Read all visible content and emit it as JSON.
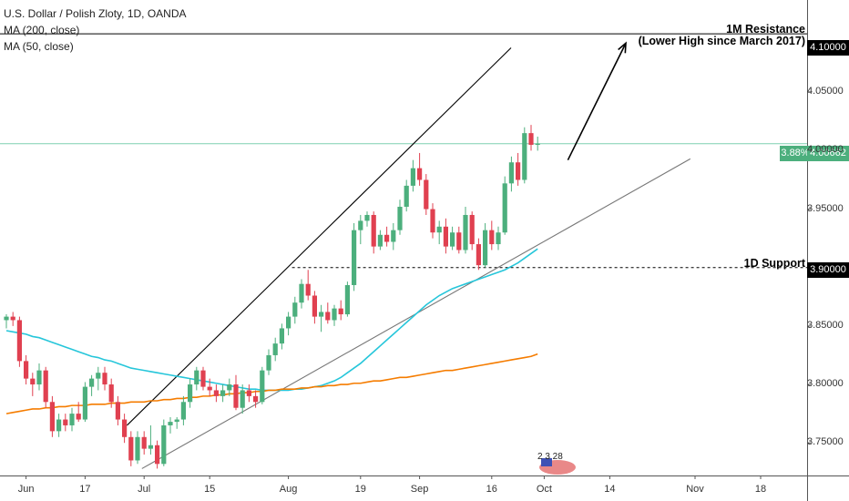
{
  "legend": {
    "symbol": "U.S. Dollar / Polish Zloty, 1D, OANDA",
    "ma200": "MA (200, close)",
    "ma50": "MA (50, close)"
  },
  "annotations": {
    "resistance_line1": "1M Resistance",
    "resistance_line2": "(Lower High since March 2017)",
    "support": "1D Support"
  },
  "price_tags": {
    "resistance": "4.10000",
    "last_price": "4.00662",
    "last_change": "3.88%",
    "support": "3.90000"
  },
  "event_badge": "2 3 28",
  "colors": {
    "up": "#4caf7d",
    "down": "#e04050",
    "ma50": "#26c6da",
    "ma200": "#f57c00",
    "last_line": "#7fd0b0"
  },
  "chart_data": {
    "type": "candlestick",
    "title": "U.S. Dollar / Polish Zloty, 1D, OANDA",
    "ylim": [
      3.72,
      4.13
    ],
    "y_ticks": [
      "4.05000",
      "4.00000",
      "3.95000",
      "3.85000",
      "3.80000",
      "3.75000"
    ],
    "x_ticks": [
      "Jun",
      "17",
      "Jul",
      "15",
      "Aug",
      "19",
      "Sep",
      "16",
      "Oct",
      "14",
      "Nov",
      "18"
    ],
    "horizontal_levels": [
      {
        "label": "1M Resistance",
        "value": 4.1
      },
      {
        "label": "1D Support",
        "value": 3.9
      }
    ],
    "candles": [
      [
        3.855,
        3.86,
        3.848,
        3.858
      ],
      [
        3.858,
        3.862,
        3.85,
        3.855
      ],
      [
        3.855,
        3.858,
        3.815,
        3.82
      ],
      [
        3.82,
        3.825,
        3.8,
        3.805
      ],
      [
        3.805,
        3.81,
        3.79,
        3.8
      ],
      [
        3.8,
        3.818,
        3.795,
        3.812
      ],
      [
        3.812,
        3.815,
        3.78,
        3.785
      ],
      [
        3.785,
        3.79,
        3.755,
        3.76
      ],
      [
        3.76,
        3.775,
        3.755,
        3.77
      ],
      [
        3.77,
        3.775,
        3.76,
        3.765
      ],
      [
        3.765,
        3.78,
        3.76,
        3.775
      ],
      [
        3.775,
        3.785,
        3.768,
        3.77
      ],
      [
        3.77,
        3.802,
        3.768,
        3.798
      ],
      [
        3.798,
        3.808,
        3.79,
        3.805
      ],
      [
        3.805,
        3.815,
        3.795,
        3.81
      ],
      [
        3.81,
        3.815,
        3.795,
        3.8
      ],
      [
        3.8,
        3.805,
        3.78,
        3.785
      ],
      [
        3.785,
        3.79,
        3.765,
        3.77
      ],
      [
        3.77,
        3.775,
        3.75,
        3.755
      ],
      [
        3.755,
        3.76,
        3.73,
        3.735
      ],
      [
        3.735,
        3.76,
        3.732,
        3.755
      ],
      [
        3.755,
        3.76,
        3.74,
        3.745
      ],
      [
        3.745,
        3.765,
        3.74,
        3.748
      ],
      [
        3.748,
        3.752,
        3.728,
        3.732
      ],
      [
        3.732,
        3.77,
        3.73,
        3.765
      ],
      [
        3.765,
        3.772,
        3.758,
        3.768
      ],
      [
        3.768,
        3.772,
        3.762,
        3.77
      ],
      [
        3.77,
        3.79,
        3.765,
        3.785
      ],
      [
        3.785,
        3.805,
        3.78,
        3.8
      ],
      [
        3.8,
        3.815,
        3.795,
        3.812
      ],
      [
        3.812,
        3.815,
        3.795,
        3.798
      ],
      [
        3.798,
        3.805,
        3.79,
        3.795
      ],
      [
        3.795,
        3.8,
        3.785,
        3.79
      ],
      [
        3.79,
        3.8,
        3.785,
        3.795
      ],
      [
        3.795,
        3.805,
        3.79,
        3.8
      ],
      [
        3.8,
        3.808,
        3.778,
        3.78
      ],
      [
        3.78,
        3.8,
        3.775,
        3.795
      ],
      [
        3.795,
        3.8,
        3.785,
        3.79
      ],
      [
        3.79,
        3.795,
        3.78,
        3.785
      ],
      [
        3.785,
        3.815,
        3.783,
        3.812
      ],
      [
        3.812,
        3.83,
        3.808,
        3.825
      ],
      [
        3.825,
        3.84,
        3.82,
        3.835
      ],
      [
        3.835,
        3.852,
        3.83,
        3.848
      ],
      [
        3.848,
        3.862,
        3.842,
        3.858
      ],
      [
        3.858,
        3.875,
        3.852,
        3.87
      ],
      [
        3.87,
        3.89,
        3.865,
        3.886
      ],
      [
        3.886,
        3.898,
        3.872,
        3.876
      ],
      [
        3.876,
        3.88,
        3.852,
        3.858
      ],
      [
        3.858,
        3.868,
        3.845,
        3.862
      ],
      [
        3.862,
        3.87,
        3.852,
        3.855
      ],
      [
        3.855,
        3.868,
        3.85,
        3.865
      ],
      [
        3.865,
        3.872,
        3.855,
        3.86
      ],
      [
        3.86,
        3.888,
        3.858,
        3.885
      ],
      [
        3.885,
        3.938,
        3.88,
        3.932
      ],
      [
        3.932,
        3.945,
        3.92,
        3.94
      ],
      [
        3.94,
        3.948,
        3.935,
        3.945
      ],
      [
        3.945,
        3.948,
        3.912,
        3.918
      ],
      [
        3.918,
        3.932,
        3.915,
        3.928
      ],
      [
        3.928,
        3.935,
        3.918,
        3.922
      ],
      [
        3.922,
        3.938,
        3.915,
        3.932
      ],
      [
        3.932,
        3.958,
        3.928,
        3.952
      ],
      [
        3.952,
        3.975,
        3.948,
        3.97
      ],
      [
        3.97,
        3.992,
        3.965,
        3.985
      ],
      [
        3.985,
        3.998,
        3.97,
        3.975
      ],
      [
        3.975,
        3.98,
        3.945,
        3.95
      ],
      [
        3.95,
        3.955,
        3.925,
        3.93
      ],
      [
        3.93,
        3.94,
        3.92,
        3.935
      ],
      [
        3.935,
        3.942,
        3.912,
        3.918
      ],
      [
        3.918,
        3.935,
        3.915,
        3.93
      ],
      [
        3.93,
        3.935,
        3.912,
        3.915
      ],
      [
        3.915,
        3.952,
        3.912,
        3.945
      ],
      [
        3.945,
        3.948,
        3.915,
        3.92
      ],
      [
        3.92,
        3.925,
        3.898,
        3.902
      ],
      [
        3.902,
        3.938,
        3.9,
        3.932
      ],
      [
        3.932,
        3.94,
        3.915,
        3.92
      ],
      [
        3.92,
        3.935,
        3.915,
        3.93
      ],
      [
        3.93,
        3.978,
        3.928,
        3.972
      ],
      [
        3.972,
        3.995,
        3.965,
        3.99
      ],
      [
        3.99,
        3.998,
        3.97,
        3.975
      ],
      [
        3.975,
        4.02,
        3.972,
        4.015
      ],
      [
        4.015,
        4.022,
        4.0,
        4.005
      ],
      [
        4.005,
        4.012,
        4.0,
        4.006
      ]
    ],
    "series": [
      {
        "name": "MA (50, close)",
        "color": "#26c6da",
        "values": [
          3.846,
          3.845,
          3.844,
          3.843,
          3.841,
          3.84,
          3.838,
          3.836,
          3.834,
          3.832,
          3.83,
          3.828,
          3.826,
          3.824,
          3.823,
          3.821,
          3.82,
          3.818,
          3.816,
          3.814,
          3.813,
          3.812,
          3.811,
          3.81,
          3.809,
          3.808,
          3.807,
          3.806,
          3.805,
          3.804,
          3.803,
          3.802,
          3.801,
          3.8,
          3.799,
          3.798,
          3.797,
          3.796,
          3.796,
          3.795,
          3.795,
          3.795,
          3.795,
          3.795,
          3.796,
          3.796,
          3.797,
          3.798,
          3.799,
          3.801,
          3.803,
          3.806,
          3.81,
          3.814,
          3.818,
          3.823,
          3.828,
          3.833,
          3.838,
          3.843,
          3.848,
          3.853,
          3.858,
          3.863,
          3.868,
          3.872,
          3.876,
          3.879,
          3.882,
          3.884,
          3.886,
          3.888,
          3.89,
          3.892,
          3.894,
          3.896,
          3.898,
          3.901,
          3.904,
          3.908,
          3.912,
          3.916
        ]
      },
      {
        "name": "MA (200, close)",
        "color": "#f57c00",
        "values": [
          3.775,
          3.776,
          3.777,
          3.778,
          3.779,
          3.779,
          3.78,
          3.78,
          3.781,
          3.781,
          3.782,
          3.782,
          3.782,
          3.783,
          3.783,
          3.783,
          3.784,
          3.784,
          3.784,
          3.785,
          3.785,
          3.785,
          3.786,
          3.786,
          3.787,
          3.787,
          3.788,
          3.788,
          3.789,
          3.789,
          3.79,
          3.79,
          3.791,
          3.791,
          3.792,
          3.792,
          3.793,
          3.793,
          3.794,
          3.794,
          3.795,
          3.795,
          3.796,
          3.796,
          3.796,
          3.797,
          3.797,
          3.798,
          3.798,
          3.799,
          3.799,
          3.8,
          3.8,
          3.801,
          3.801,
          3.802,
          3.803,
          3.803,
          3.804,
          3.805,
          3.806,
          3.806,
          3.807,
          3.808,
          3.809,
          3.81,
          3.811,
          3.812,
          3.812,
          3.813,
          3.814,
          3.815,
          3.816,
          3.817,
          3.818,
          3.819,
          3.82,
          3.821,
          3.822,
          3.823,
          3.824,
          3.826
        ]
      }
    ],
    "trendlines": [
      {
        "name": "channel-upper",
        "from": [
          17,
          3.765
        ],
        "to": [
          70,
          4.088
        ]
      },
      {
        "name": "channel-lower",
        "from": [
          19,
          3.728
        ],
        "to": [
          94,
          3.993
        ]
      },
      {
        "name": "forecast-arrow",
        "from": [
          77,
          3.992
        ],
        "to": [
          85,
          4.092
        ]
      },
      {
        "name": "support-start",
        "from": [
          38,
          3.9
        ],
        "to": [
          110,
          3.9
        ]
      }
    ]
  }
}
